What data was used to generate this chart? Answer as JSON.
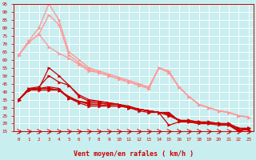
{
  "xlabel": "Vent moyen/en rafales ( km/h )",
  "bg_color": "#c8eef0",
  "grid_color": "#aadddd",
  "xlim": [
    -0.5,
    23.5
  ],
  "ylim": [
    15,
    95
  ],
  "yticks": [
    15,
    20,
    25,
    30,
    35,
    40,
    45,
    50,
    55,
    60,
    65,
    70,
    75,
    80,
    85,
    90,
    95
  ],
  "xticks": [
    0,
    1,
    2,
    3,
    4,
    5,
    6,
    7,
    8,
    9,
    10,
    11,
    12,
    13,
    14,
    15,
    16,
    17,
    18,
    19,
    20,
    21,
    22,
    23
  ],
  "series_dark": [
    [
      35,
      42,
      42,
      55,
      50,
      44,
      38,
      35,
      34,
      33,
      32,
      30,
      29,
      28,
      27,
      27,
      22,
      21,
      20,
      20,
      20,
      19,
      16,
      17
    ],
    [
      35,
      42,
      43,
      50,
      46,
      44,
      37,
      34,
      34,
      33,
      32,
      31,
      29,
      28,
      27,
      26,
      22,
      21,
      21,
      20,
      20,
      19,
      17,
      17
    ],
    [
      35,
      42,
      42,
      42,
      41,
      37,
      34,
      33,
      33,
      32,
      32,
      30,
      29,
      28,
      27,
      26,
      22,
      21,
      21,
      21,
      20,
      20,
      17,
      17
    ],
    [
      35,
      41,
      42,
      42,
      41,
      36,
      34,
      33,
      33,
      32,
      32,
      30,
      29,
      28,
      27,
      26,
      22,
      22,
      21,
      21,
      20,
      20,
      17,
      17
    ],
    [
      35,
      41,
      41,
      41,
      41,
      36,
      33,
      31,
      31,
      31,
      31,
      30,
      29,
      28,
      27,
      25,
      22,
      22,
      21,
      20,
      20,
      19,
      16,
      16
    ],
    [
      35,
      42,
      42,
      43,
      42,
      36,
      34,
      32,
      32,
      31,
      31,
      30,
      28,
      27,
      27,
      19,
      21,
      21,
      20,
      20,
      19,
      19,
      15,
      17
    ]
  ],
  "series_light": [
    [
      63,
      71,
      76,
      68,
      64,
      61,
      57,
      53,
      52,
      50,
      48,
      46,
      44,
      42,
      55,
      52,
      43,
      37,
      32,
      30,
      28,
      27,
      25,
      24
    ],
    [
      63,
      72,
      80,
      95,
      85,
      65,
      60,
      55,
      53,
      51,
      49,
      47,
      45,
      43,
      55,
      53,
      43,
      37,
      32,
      30,
      28,
      27,
      25,
      24
    ],
    [
      63,
      71,
      76,
      88,
      82,
      63,
      58,
      54,
      52,
      50,
      48,
      46,
      44,
      42,
      55,
      52,
      43,
      37,
      32,
      30,
      28,
      27,
      25,
      24
    ]
  ],
  "dark_color": "#cc0000",
  "light_color": "#ff9999",
  "dark_lw": 0.9,
  "light_lw": 1.0,
  "marker_size": 2.5,
  "arrow_color": "#cc0000"
}
